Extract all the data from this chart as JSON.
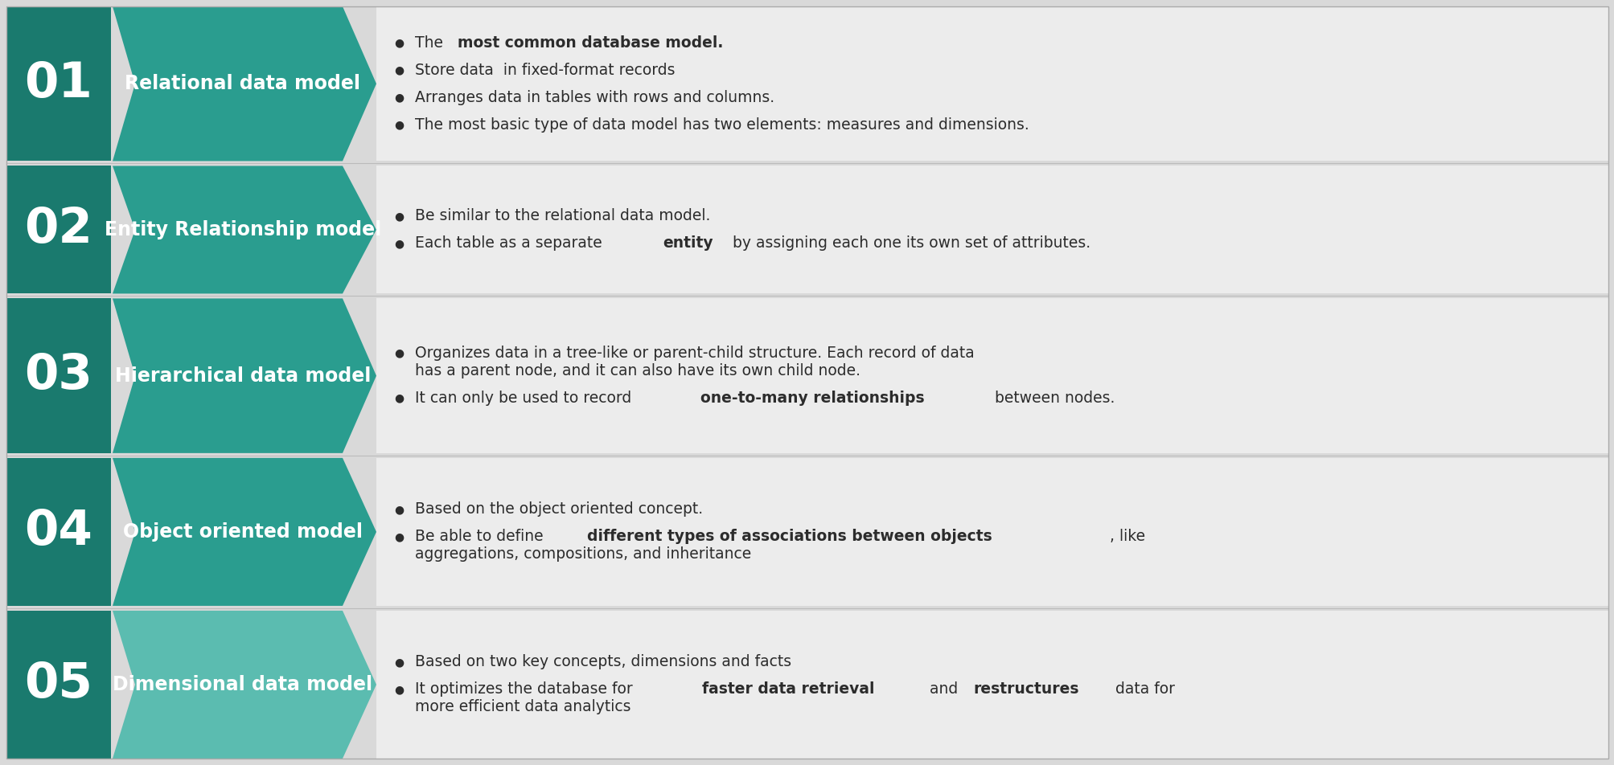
{
  "bg_color": "#d9d9d9",
  "dark_teal": "#1a7a6e",
  "mid_teal": "#2a9d8f",
  "light_teal": "#5bbcb0",
  "text_white": "#ffffff",
  "text_dark": "#2c2c2c",
  "rows": [
    {
      "number": "01",
      "title": "Relational data model",
      "num_color": "#1a7a6e",
      "arrow_color": "#2a9d8f",
      "bullets": [
        [
          {
            "t": "The ",
            "b": false
          },
          {
            "t": "most common database model.",
            "b": true
          }
        ],
        [
          {
            "t": "Store data  in fixed-format records",
            "b": false
          }
        ],
        [
          {
            "t": "Arranges data in tables with rows and columns.",
            "b": false
          }
        ],
        [
          {
            "t": "The most basic type of data model has two elements: measures and dimensions.",
            "b": false
          }
        ]
      ]
    },
    {
      "number": "02",
      "title": "Entity Relationship model",
      "num_color": "#1a7a6e",
      "arrow_color": "#2a9d8f",
      "bullets": [
        [
          {
            "t": "Be similar to the relational data model.",
            "b": false
          }
        ],
        [
          {
            "t": "Each table as a separate ",
            "b": false
          },
          {
            "t": "entity",
            "b": true
          },
          {
            "t": " by assigning each one its own set of attributes.",
            "b": false
          }
        ]
      ]
    },
    {
      "number": "03",
      "title": "Hierarchical data model",
      "num_color": "#1a7a6e",
      "arrow_color": "#2a9d8f",
      "bullets": [
        [
          {
            "t": "Organizes data in a tree-like or parent-child structure. Each record of data\nhas a parent node, and it can also have its own child node.",
            "b": false
          }
        ],
        [
          {
            "t": "It can only be used to record ",
            "b": false
          },
          {
            "t": "one-to-many relationships",
            "b": true
          },
          {
            "t": " between nodes.",
            "b": false
          }
        ]
      ]
    },
    {
      "number": "04",
      "title": "Object oriented model",
      "num_color": "#1a7a6e",
      "arrow_color": "#2a9d8f",
      "bullets": [
        [
          {
            "t": "Based on the object oriented concept.",
            "b": false
          }
        ],
        [
          {
            "t": "Be able to define ",
            "b": false
          },
          {
            "t": "different types of associations between objects",
            "b": true
          },
          {
            "t": ", like\naggregations, compositions, and inheritance",
            "b": false
          }
        ]
      ]
    },
    {
      "number": "05",
      "title": "Dimensional data model",
      "num_color": "#1a7a6e",
      "arrow_color": "#5bbcb0",
      "bullets": [
        [
          {
            "t": "Based on two key concepts, dimensions and facts",
            "b": false
          }
        ],
        [
          {
            "t": "It optimizes the database for ",
            "b": false
          },
          {
            "t": "faster data retrieval",
            "b": true
          },
          {
            "t": " and ",
            "b": false
          },
          {
            "t": "restructures",
            "b": true
          },
          {
            "t": " data for\nmore efficient data analytics",
            "b": false
          }
        ]
      ]
    }
  ]
}
